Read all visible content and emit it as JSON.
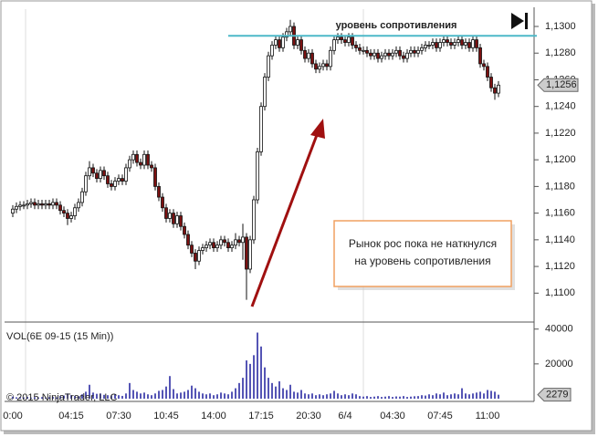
{
  "chart_data": [
    {
      "type": "candlestick",
      "categories": [
        "0:00",
        null,
        null,
        null,
        null,
        null,
        null,
        null,
        null,
        null,
        null,
        null,
        null,
        null,
        null,
        null,
        "04:15",
        null,
        null,
        null,
        null,
        null,
        null,
        null,
        null,
        null,
        null,
        null,
        null,
        "07:30",
        null,
        null,
        null,
        null,
        null,
        null,
        null,
        null,
        null,
        null,
        null,
        null,
        "10:45",
        null,
        null,
        null,
        null,
        null,
        null,
        null,
        null,
        null,
        null,
        null,
        null,
        "14:00",
        null,
        null,
        null,
        null,
        null,
        null,
        null,
        null,
        null,
        null,
        null,
        null,
        "17:15",
        null,
        null,
        null,
        null,
        null,
        null,
        null,
        null,
        null,
        null,
        null,
        null,
        "20:30",
        null,
        null,
        null,
        null,
        null,
        null,
        null,
        null,
        null,
        "6/4",
        null,
        null,
        null,
        null,
        null,
        null,
        null,
        null,
        null,
        null,
        null,
        null,
        "04:30",
        null,
        null,
        null,
        null,
        null,
        null,
        null,
        null,
        null,
        null,
        null,
        null,
        "07:45",
        null,
        null,
        null,
        null,
        null,
        null,
        null,
        null,
        null,
        null,
        null,
        null,
        "11:00",
        null,
        null,
        null
      ],
      "candles": [
        [
          1.116,
          1.1166,
          1.1157,
          1.1163
        ],
        [
          1.1163,
          1.1168,
          1.116,
          1.1165
        ],
        [
          1.1165,
          1.1169,
          1.1162,
          1.1166
        ],
        [
          1.1166,
          1.1169,
          1.1163,
          1.1166
        ],
        [
          1.1166,
          1.117,
          1.1163,
          1.1167
        ],
        [
          1.1167,
          1.1171,
          1.1164,
          1.1168
        ],
        [
          1.1168,
          1.1171,
          1.1163,
          1.1166
        ],
        [
          1.1166,
          1.117,
          1.1163,
          1.1167
        ],
        [
          1.1167,
          1.117,
          1.1163,
          1.1166
        ],
        [
          1.1166,
          1.117,
          1.1163,
          1.1167
        ],
        [
          1.1167,
          1.117,
          1.1163,
          1.1166
        ],
        [
          1.1166,
          1.1171,
          1.1163,
          1.1168
        ],
        [
          1.1168,
          1.1171,
          1.1163,
          1.1166
        ],
        [
          1.1166,
          1.1169,
          1.1159,
          1.1162
        ],
        [
          1.1162,
          1.1165,
          1.1157,
          1.116
        ],
        [
          1.116,
          1.1163,
          1.1151,
          1.1156
        ],
        [
          1.1156,
          1.1161,
          1.1153,
          1.1158
        ],
        [
          1.1158,
          1.1167,
          1.1155,
          1.1164
        ],
        [
          1.1164,
          1.1171,
          1.1161,
          1.1168
        ],
        [
          1.1168,
          1.1179,
          1.1165,
          1.1176
        ],
        [
          1.1176,
          1.1191,
          1.1173,
          1.1188
        ],
        [
          1.1188,
          1.1199,
          1.1185,
          1.1194
        ],
        [
          1.1194,
          1.1197,
          1.1187,
          1.119
        ],
        [
          1.119,
          1.1193,
          1.1183,
          1.1186
        ],
        [
          1.1186,
          1.1195,
          1.1183,
          1.1192
        ],
        [
          1.1192,
          1.1195,
          1.1185,
          1.1188
        ],
        [
          1.1188,
          1.1191,
          1.1179,
          1.1182
        ],
        [
          1.1182,
          1.1185,
          1.1177,
          1.118
        ],
        [
          1.118,
          1.1187,
          1.1177,
          1.1184
        ],
        [
          1.1184,
          1.1189,
          1.1181,
          1.1186
        ],
        [
          1.1186,
          1.1189,
          1.1181,
          1.1184
        ],
        [
          1.1184,
          1.1197,
          1.1181,
          1.1194
        ],
        [
          1.1194,
          1.1203,
          1.1191,
          1.12
        ],
        [
          1.12,
          1.1207,
          1.1197,
          1.1204
        ],
        [
          1.1204,
          1.1207,
          1.1195,
          1.1198
        ],
        [
          1.1198,
          1.1201,
          1.1193,
          1.1196
        ],
        [
          1.1196,
          1.1207,
          1.1193,
          1.1204
        ],
        [
          1.1204,
          1.1207,
          1.1193,
          1.1196
        ],
        [
          1.1196,
          1.1199,
          1.1191,
          1.1194
        ],
        [
          1.1194,
          1.1197,
          1.1177,
          1.118
        ],
        [
          1.118,
          1.1183,
          1.1169,
          1.1172
        ],
        [
          1.1172,
          1.1175,
          1.1161,
          1.1164
        ],
        [
          1.1164,
          1.1167,
          1.1153,
          1.1156
        ],
        [
          1.1156,
          1.1163,
          1.1153,
          1.116
        ],
        [
          1.116,
          1.1163,
          1.1149,
          1.1152
        ],
        [
          1.1152,
          1.1161,
          1.1149,
          1.1158
        ],
        [
          1.1158,
          1.1161,
          1.1147,
          1.115
        ],
        [
          1.115,
          1.1153,
          1.1141,
          1.1144
        ],
        [
          1.1144,
          1.1147,
          1.1133,
          1.1136
        ],
        [
          1.1136,
          1.1139,
          1.1127,
          1.113
        ],
        [
          1.113,
          1.1133,
          1.1118,
          1.1124
        ],
        [
          1.1124,
          1.1135,
          1.1121,
          1.1132
        ],
        [
          1.1132,
          1.1137,
          1.1129,
          1.1134
        ],
        [
          1.1134,
          1.1139,
          1.1131,
          1.1136
        ],
        [
          1.1136,
          1.1141,
          1.1133,
          1.1138
        ],
        [
          1.1138,
          1.1141,
          1.1131,
          1.1134
        ],
        [
          1.1134,
          1.1139,
          1.1131,
          1.1136
        ],
        [
          1.1136,
          1.1143,
          1.1133,
          1.114
        ],
        [
          1.114,
          1.1143,
          1.1135,
          1.1138
        ],
        [
          1.1138,
          1.1141,
          1.1131,
          1.1134
        ],
        [
          1.1134,
          1.1139,
          1.1131,
          1.1136
        ],
        [
          1.1136,
          1.1145,
          1.1133,
          1.114
        ],
        [
          1.114,
          1.1143,
          1.1135,
          1.1138
        ],
        [
          1.1138,
          1.1152,
          1.1125,
          1.1142
        ],
        [
          1.1142,
          1.1145,
          1.1095,
          1.1118
        ],
        [
          1.1118,
          1.1143,
          1.1115,
          1.114
        ],
        [
          1.114,
          1.1173,
          1.1137,
          1.117
        ],
        [
          1.117,
          1.1209,
          1.1167,
          1.1206
        ],
        [
          1.1206,
          1.1243,
          1.1203,
          1.124
        ],
        [
          1.124,
          1.1265,
          1.1237,
          1.1262
        ],
        [
          1.1262,
          1.1281,
          1.1259,
          1.1278
        ],
        [
          1.1278,
          1.1289,
          1.1275,
          1.1286
        ],
        [
          1.1286,
          1.1293,
          1.1283,
          1.129
        ],
        [
          1.129,
          1.1293,
          1.1281,
          1.1284
        ],
        [
          1.1284,
          1.1295,
          1.1281,
          1.1292
        ],
        [
          1.1292,
          1.1299,
          1.1289,
          1.1296
        ],
        [
          1.1296,
          1.1305,
          1.1293,
          1.13
        ],
        [
          1.13,
          1.1303,
          1.1283,
          1.1286
        ],
        [
          1.1286,
          1.1293,
          1.1283,
          1.129
        ],
        [
          1.129,
          1.1293,
          1.1279,
          1.1282
        ],
        [
          1.1282,
          1.1285,
          1.1273,
          1.1276
        ],
        [
          1.1276,
          1.1283,
          1.1273,
          1.128
        ],
        [
          1.128,
          1.1283,
          1.1269,
          1.1272
        ],
        [
          1.1272,
          1.1275,
          1.1265,
          1.1268
        ],
        [
          1.1268,
          1.1273,
          1.1265,
          1.127
        ],
        [
          1.127,
          1.1275,
          1.1267,
          1.1272
        ],
        [
          1.1272,
          1.1275,
          1.1267,
          1.127
        ],
        [
          1.127,
          1.1285,
          1.1267,
          1.1282
        ],
        [
          1.1282,
          1.1293,
          1.1279,
          1.129
        ],
        [
          1.129,
          1.1295,
          1.1287,
          1.1292
        ],
        [
          1.1292,
          1.1295,
          1.1287,
          1.129
        ],
        [
          1.129,
          1.1293,
          1.1285,
          1.1288
        ],
        [
          1.1288,
          1.1295,
          1.1285,
          1.1292
        ],
        [
          1.1292,
          1.1295,
          1.1283,
          1.1286
        ],
        [
          1.1286,
          1.1289,
          1.1281,
          1.1284
        ],
        [
          1.1284,
          1.1287,
          1.1279,
          1.1282
        ],
        [
          1.1282,
          1.1285,
          1.1279,
          1.1282
        ],
        [
          1.1282,
          1.1285,
          1.1277,
          1.128
        ],
        [
          1.128,
          1.1283,
          1.1275,
          1.1278
        ],
        [
          1.1278,
          1.1283,
          1.1275,
          1.128
        ],
        [
          1.128,
          1.1283,
          1.1273,
          1.1276
        ],
        [
          1.1276,
          1.1281,
          1.1273,
          1.1278
        ],
        [
          1.1278,
          1.1283,
          1.1275,
          1.128
        ],
        [
          1.128,
          1.1283,
          1.1275,
          1.1278
        ],
        [
          1.1278,
          1.1283,
          1.1275,
          1.128
        ],
        [
          1.128,
          1.1285,
          1.1277,
          1.1282
        ],
        [
          1.1282,
          1.1285,
          1.1275,
          1.1278
        ],
        [
          1.1278,
          1.1281,
          1.1273,
          1.1276
        ],
        [
          1.1276,
          1.1283,
          1.1273,
          1.128
        ],
        [
          1.128,
          1.1285,
          1.1277,
          1.1282
        ],
        [
          1.1282,
          1.1285,
          1.1277,
          1.128
        ],
        [
          1.128,
          1.1285,
          1.1277,
          1.1282
        ],
        [
          1.1282,
          1.1287,
          1.1279,
          1.1284
        ],
        [
          1.1284,
          1.1289,
          1.1281,
          1.1286
        ],
        [
          1.1286,
          1.1289,
          1.1283,
          1.1286
        ],
        [
          1.1286,
          1.1291,
          1.1283,
          1.1288
        ],
        [
          1.1288,
          1.1291,
          1.1281,
          1.1284
        ],
        [
          1.1284,
          1.1291,
          1.1281,
          1.1288
        ],
        [
          1.1288,
          1.1293,
          1.1285,
          1.129
        ],
        [
          1.129,
          1.1293,
          1.1285,
          1.1288
        ],
        [
          1.1288,
          1.1291,
          1.1283,
          1.1286
        ],
        [
          1.1286,
          1.1291,
          1.1283,
          1.1288
        ],
        [
          1.1288,
          1.1293,
          1.1285,
          1.129
        ],
        [
          1.129,
          1.1293,
          1.1283,
          1.1286
        ],
        [
          1.1286,
          1.1291,
          1.1283,
          1.1288
        ],
        [
          1.1288,
          1.1291,
          1.1281,
          1.1284
        ],
        [
          1.1284,
          1.1293,
          1.1281,
          1.129
        ],
        [
          1.129,
          1.1293,
          1.1281,
          1.1284
        ],
        [
          1.1284,
          1.1287,
          1.1269,
          1.1272
        ],
        [
          1.1272,
          1.1275,
          1.1267,
          1.127
        ],
        [
          1.127,
          1.1273,
          1.1259,
          1.1262
        ],
        [
          1.1262,
          1.1265,
          1.1251,
          1.1254
        ],
        [
          1.1254,
          1.1257,
          1.1245,
          1.125
        ],
        [
          1.125,
          1.1259,
          1.1247,
          1.1256
        ]
      ],
      "up_color": "#ffffff",
      "down_color": "#7a1010",
      "ylim": [
        1.1079,
        1.1313
      ],
      "yticks": [
        {
          "value": 1.11,
          "label": "1,1100"
        },
        {
          "value": 1.112,
          "label": "1,1120"
        },
        {
          "value": 1.114,
          "label": "1,1140"
        },
        {
          "value": 1.116,
          "label": "1,1160"
        },
        {
          "value": 1.118,
          "label": "1,1180"
        },
        {
          "value": 1.12,
          "label": "1,1200"
        },
        {
          "value": 1.122,
          "label": "1,1220"
        },
        {
          "value": 1.124,
          "label": "1,1240"
        },
        {
          "value": 1.126,
          "label": "1,1260"
        },
        {
          "value": 1.128,
          "label": "1,1280"
        },
        {
          "value": 1.13,
          "label": "1,1300"
        }
      ],
      "last_price": {
        "value": 1.1256,
        "label": "1,1256"
      },
      "resistance": {
        "value": 1.1293,
        "label": "уровень сопротивления"
      },
      "annotation": [
        "Рынок рос пока не наткнулся",
        "на уровень сопротивления"
      ]
    },
    {
      "type": "bar",
      "title": "VOL(6E 09-15 (15 Min))",
      "watermark": "© 2015 NinjaTrader, LLC",
      "color": "#1c1c9c",
      "values": [
        1200,
        800,
        900,
        700,
        1000,
        600,
        800,
        700,
        900,
        600,
        800,
        1000,
        700,
        1500,
        1800,
        3000,
        2000,
        1600,
        1400,
        2500,
        4000,
        8000,
        3500,
        2800,
        3000,
        2200,
        2000,
        1800,
        2500,
        2000,
        1600,
        3000,
        9000,
        5000,
        4000,
        3000,
        3500,
        2500,
        2000,
        3000,
        4500,
        5000,
        7000,
        13000,
        5500,
        3000,
        3500,
        4000,
        5000,
        7500,
        6000,
        4000,
        3000,
        2500,
        3000,
        2000,
        2500,
        3500,
        3000,
        2500,
        4000,
        6000,
        9000,
        12000,
        22000,
        20000,
        25000,
        38000,
        30000,
        18000,
        12000,
        9000,
        7000,
        10000,
        6000,
        5000,
        8000,
        4000,
        3500,
        5000,
        3000,
        2500,
        3000,
        2000,
        2500,
        2000,
        2500,
        3000,
        4500,
        3000,
        2000,
        2500,
        2000,
        3000,
        2500,
        1500,
        1200,
        1500,
        1000,
        1200,
        1500,
        1000,
        1200,
        1500,
        1000,
        1300,
        1200,
        1500,
        1000,
        1200,
        1400,
        1500,
        2000,
        1800,
        2500,
        2000,
        3000,
        2500,
        3500,
        2000,
        2500,
        3000,
        2500,
        6000,
        3000,
        2500,
        3000,
        3500,
        4000,
        3000,
        5000,
        4500,
        4000,
        2279
      ],
      "ylim": [
        0,
        43000
      ],
      "yticks": [
        20000,
        40000
      ]
    }
  ]
}
